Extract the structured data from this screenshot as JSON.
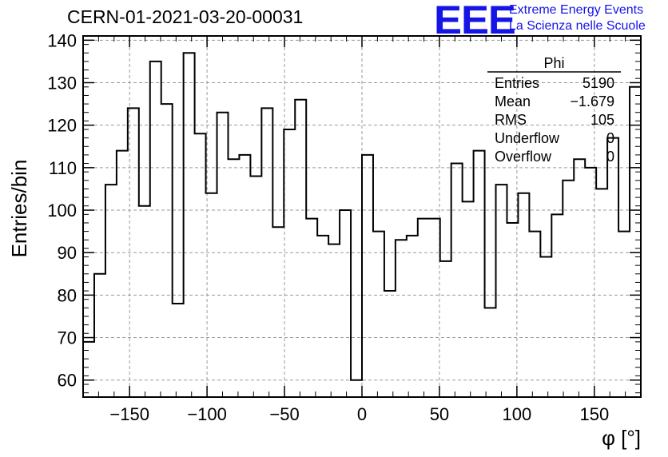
{
  "chart_data": {
    "type": "histogram",
    "title": "CERN-01-2021-03-20-00031",
    "xlabel": "φ [°]",
    "ylabel": "Entries/bin",
    "xlim": [
      -180,
      180
    ],
    "ylim": [
      56,
      141
    ],
    "grid": true,
    "x_ticks": [
      -150,
      -100,
      -50,
      0,
      50,
      100,
      150
    ],
    "y_ticks": [
      60,
      70,
      80,
      90,
      100,
      110,
      120,
      130,
      140
    ],
    "bin_width": 7.2,
    "bin_edges_start": -180,
    "values": [
      69,
      85,
      106,
      114,
      124,
      101,
      135,
      125,
      78,
      137,
      118,
      104,
      123,
      112,
      113,
      108,
      124,
      96,
      119,
      126,
      98,
      94,
      92,
      100,
      60,
      113,
      95,
      81,
      93,
      94,
      98,
      98,
      88,
      111,
      102,
      114,
      77,
      106,
      97,
      104,
      95,
      89,
      99,
      107,
      112,
      110,
      105,
      117,
      95,
      129
    ],
    "stats_box": {
      "title": "Phi",
      "rows": [
        {
          "label": "Entries",
          "value": "5190"
        },
        {
          "label": "Mean",
          "value": "−1.679"
        },
        {
          "label": "RMS",
          "value": "105"
        },
        {
          "label": "Underflow",
          "value": "0"
        },
        {
          "label": "Overflow",
          "value": "0"
        }
      ]
    }
  },
  "logo": {
    "mark": "EEE",
    "line1": "Extreme Energy Events",
    "line2": "La Scienza nelle Scuole",
    "color": "#1515e6"
  }
}
